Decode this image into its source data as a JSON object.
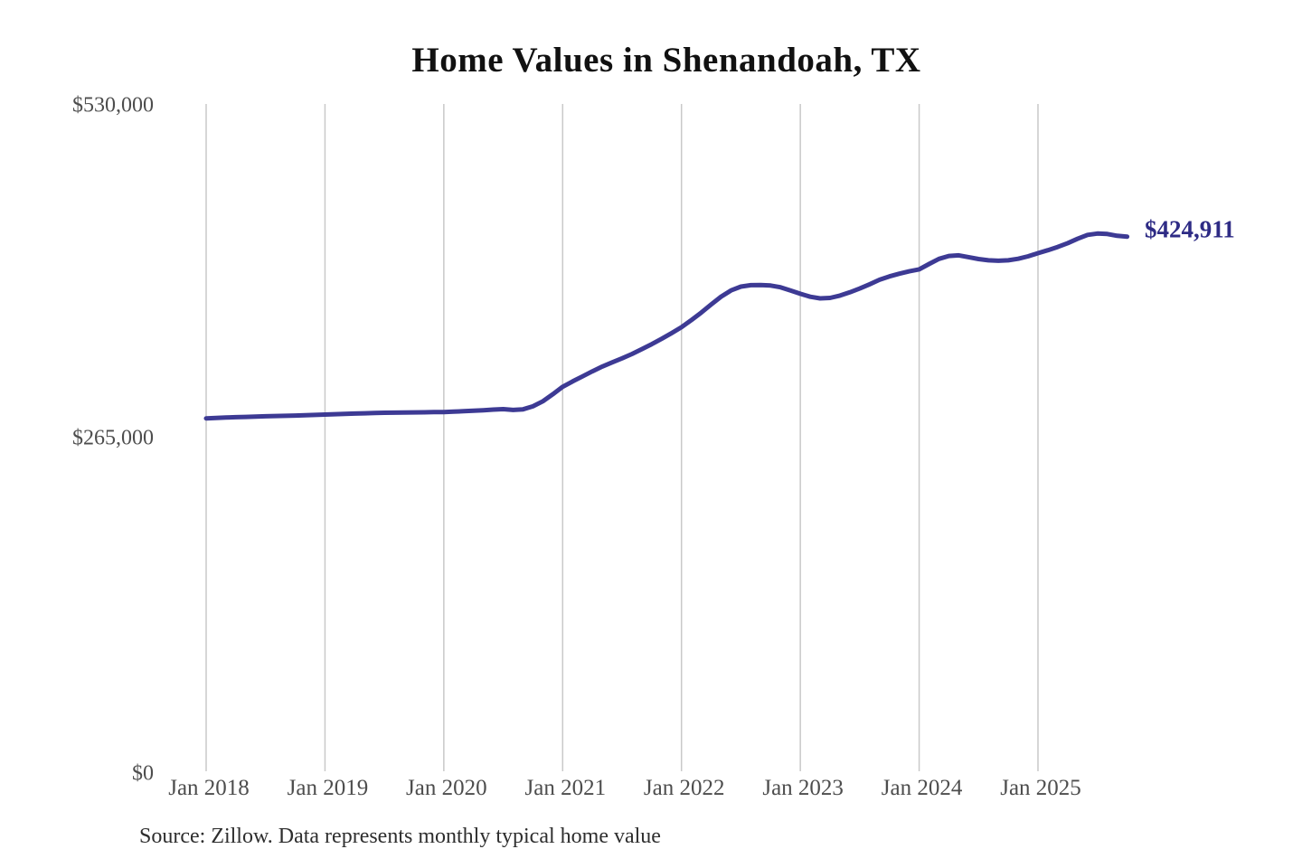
{
  "title": "Home Values in Shenandoah, TX",
  "annotation": {
    "label": "$424,911"
  },
  "source": "Source: Zillow. Data represents monthly typical home value",
  "colors": {
    "line": "#3d3a94",
    "annotation": "#2e2b85",
    "gridline": "#c9c9c9",
    "axis_text": "#4d4d4d",
    "title_text": "#111111",
    "source_text": "#2e2e2e"
  },
  "chart_data": {
    "type": "line",
    "title": "Home Values in Shenandoah, TX",
    "xlabel": "",
    "ylabel": "",
    "ylim": [
      0,
      530000
    ],
    "grid": "vertical-only",
    "legend": "none",
    "y_tick_labels": [
      "$530,000",
      "$265,000",
      "$0"
    ],
    "y_tick_values": [
      530000,
      265000,
      0
    ],
    "x_tick_labels": [
      "Jan 2018",
      "Jan 2019",
      "Jan 2020",
      "Jan 2021",
      "Jan 2022",
      "Jan 2023",
      "Jan 2024",
      "Jan 2025"
    ],
    "start_month": "2018-01",
    "end_month": "2025-10",
    "end_value": 424911,
    "end_label": "$424,911",
    "series": [
      {
        "name": "Monthly typical home value",
        "values": [
          281000,
          281300,
          281600,
          281900,
          282100,
          282400,
          282600,
          282800,
          283000,
          283200,
          283500,
          283700,
          284000,
          284300,
          284500,
          284800,
          285000,
          285200,
          285400,
          285500,
          285600,
          285700,
          285800,
          285900,
          286000,
          286300,
          286600,
          287000,
          287400,
          287900,
          288300,
          287600,
          288100,
          290500,
          294500,
          300000,
          306000,
          310200,
          314200,
          318200,
          322000,
          325300,
          328500,
          332000,
          335800,
          339800,
          344000,
          348500,
          353200,
          358800,
          364800,
          371200,
          377400,
          382300,
          385300,
          386500,
          386600,
          386200,
          384800,
          382300,
          379700,
          377300,
          376000,
          376400,
          378200,
          380800,
          383800,
          387200,
          390800,
          393400,
          395600,
          397400,
          399000,
          403200,
          407300,
          409600,
          410100,
          408700,
          407200,
          406200,
          405800,
          406200,
          407400,
          409300,
          411800,
          414200,
          416800,
          419800,
          423200,
          426300,
          427400,
          427000,
          425600,
          424911
        ]
      }
    ]
  }
}
